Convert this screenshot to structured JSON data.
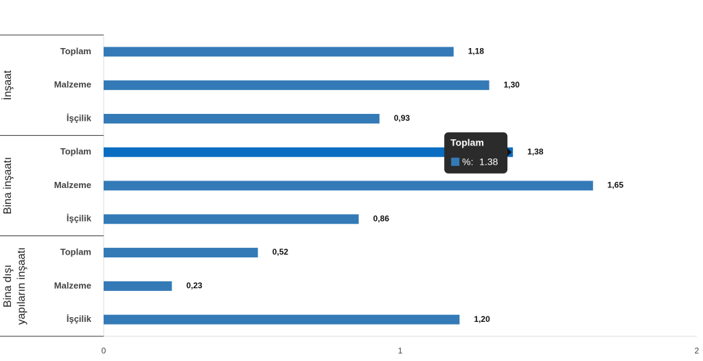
{
  "chart_data": {
    "type": "bar",
    "orientation": "horizontal",
    "color": "#337ab7",
    "highlight": {
      "group": 1,
      "index": 0,
      "color": "#0a6dc2"
    },
    "groups": [
      {
        "label": [
          "İnşaat"
        ],
        "categories": [
          "Toplam",
          "Malzeme",
          "İşçilik"
        ],
        "values": [
          1.18,
          1.3,
          0.93
        ],
        "value_labels": [
          "1,18",
          "1,30",
          "0,93"
        ]
      },
      {
        "label": [
          "Bina inşaatı"
        ],
        "categories": [
          "Toplam",
          "Malzeme",
          "İşçilik"
        ],
        "values": [
          1.38,
          1.65,
          0.86
        ],
        "value_labels": [
          "1,38",
          "1,65",
          "0,86"
        ]
      },
      {
        "label": [
          "Bina dışı",
          "yapıların inşaatı"
        ],
        "categories": [
          "Toplam",
          "Malzeme",
          "İşçilik"
        ],
        "values": [
          0.52,
          0.23,
          1.2
        ],
        "value_labels": [
          "0,52",
          "0,23",
          "1,20"
        ]
      }
    ],
    "xlim": [
      0,
      2
    ],
    "xticks": [
      0,
      1,
      2
    ],
    "tooltip": {
      "title": "Toplam",
      "label": "%:",
      "value": 1.38
    }
  }
}
